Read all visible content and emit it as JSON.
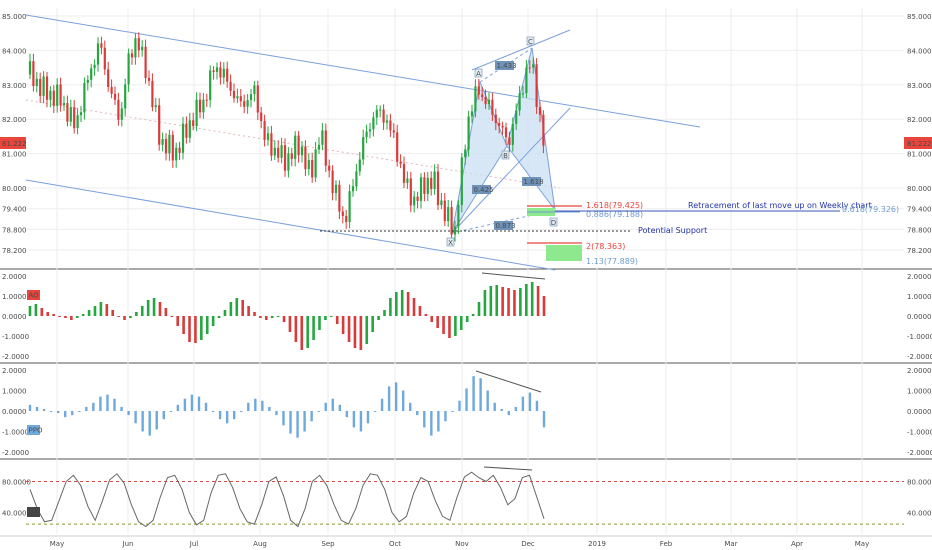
{
  "colors": {
    "up": "#26a641",
    "down": "#d93b3b",
    "channel": "#7aa1db",
    "pattern_fill": "#c9dff2",
    "badge": "#e8453c",
    "ppo_bar": "#6fa8dc",
    "sd_line": "#666666",
    "level_red": "#e8453c",
    "level_blue": "#6f9bd1",
    "zone_green": "#8ee88e",
    "grid": "#eeeeee",
    "divider": "#555555"
  },
  "chart_data": [
    {
      "type": "candlestick",
      "title": "",
      "ylim": [
        77.6,
        85.2
      ],
      "y_ticks": [
        "85.000",
        "84.000",
        "83.000",
        "82.000",
        "81.000",
        "80.000",
        "79.400",
        "78.800",
        "78.200"
      ],
      "last_price": "81.222",
      "x_labels": [
        "May",
        "Jun",
        "Jul",
        "Aug",
        "Sep",
        "Oct",
        "Nov",
        "Dec",
        "2019",
        "Feb",
        "Mar",
        "Apr",
        "May"
      ],
      "annotations": {
        "pattern_points": [
          "X",
          "A",
          "B",
          "C",
          "D"
        ],
        "ratios": [
          "1.433",
          "0.425",
          "1.618",
          "0.873"
        ],
        "levels": [
          "1.618(79.425)",
          "0.886(79.188)",
          "2(78.363)",
          "1.13(77.889)",
          "0.618(79.326)"
        ],
        "notes": [
          "Retracement of last move up on Weekly chart",
          "Potential Support"
        ]
      }
    },
    {
      "type": "bar",
      "name": "AO",
      "ylim": [
        -2,
        2
      ],
      "y_ticks": [
        "2.0000",
        "1.0000",
        "0.0000",
        "-1.0000",
        "-2.0000"
      ],
      "values": [
        0.5,
        0.6,
        0.4,
        0.2,
        0.1,
        0.0,
        -0.1,
        -0.2,
        -0.1,
        0.1,
        0.3,
        0.5,
        0.7,
        0.6,
        0.3,
        0.0,
        -0.2,
        -0.1,
        0.2,
        0.5,
        0.8,
        0.9,
        0.7,
        0.4,
        0.0,
        -0.5,
        -0.9,
        -1.3,
        -1.35,
        -1.2,
        -0.9,
        -0.5,
        -0.1,
        0.3,
        0.7,
        0.9,
        0.8,
        0.5,
        0.2,
        -0.1,
        -0.2,
        -0.1,
        0.0,
        -0.3,
        -0.8,
        -1.3,
        -1.7,
        -1.6,
        -1.2,
        -0.7,
        -0.2,
        0.0,
        -0.4,
        -0.9,
        -1.3,
        -1.6,
        -1.7,
        -1.4,
        -0.8,
        -0.2,
        0.3,
        0.9,
        1.2,
        1.3,
        1.2,
        0.9,
        0.5,
        0.1,
        -0.3,
        -0.6,
        -0.9,
        -1.1,
        -1.0,
        -0.7,
        -0.3,
        0.1,
        0.7,
        1.3,
        1.5,
        1.55,
        1.45,
        1.4,
        1.3,
        1.4,
        1.6,
        1.7,
        1.5,
        1.0
      ]
    },
    {
      "type": "bar",
      "name": "PPO",
      "ylim": [
        -2,
        2
      ],
      "y_ticks": [
        "2.0000",
        "1.0000",
        "0.0000",
        "-1.0000",
        "-2.0000"
      ],
      "values": [
        0.3,
        0.2,
        0.1,
        0.0,
        -0.1,
        -0.3,
        -0.2,
        0.0,
        0.2,
        0.4,
        0.7,
        0.8,
        0.6,
        0.2,
        -0.2,
        -0.6,
        -1.0,
        -1.2,
        -0.9,
        -0.4,
        0.0,
        0.3,
        0.6,
        0.8,
        0.7,
        0.4,
        0.0,
        -0.4,
        -0.6,
        -0.4,
        0.0,
        0.4,
        0.6,
        0.5,
        0.2,
        -0.2,
        -0.7,
        -1.1,
        -1.3,
        -1.0,
        -0.5,
        0.0,
        0.4,
        0.6,
        0.3,
        -0.3,
        -0.8,
        -1.0,
        -0.6,
        0.0,
        0.6,
        1.2,
        1.4,
        1.0,
        0.4,
        -0.2,
        -0.8,
        -1.2,
        -1.0,
        -0.5,
        0.0,
        0.5,
        1.1,
        1.7,
        1.6,
        1.0,
        0.4,
        0.1,
        -0.2,
        0.2,
        0.7,
        0.9,
        0.5,
        -0.8
      ]
    },
    {
      "type": "line",
      "name": "SD",
      "ylim": [
        20,
        100
      ],
      "y_ticks": [
        "80.0000",
        "40.0000"
      ],
      "levels": [
        80,
        25
      ],
      "values": [
        70,
        45,
        28,
        30,
        55,
        80,
        88,
        75,
        48,
        30,
        55,
        82,
        90,
        78,
        50,
        28,
        22,
        30,
        60,
        85,
        88,
        70,
        40,
        24,
        30,
        65,
        88,
        90,
        72,
        45,
        28,
        25,
        50,
        80,
        86,
        62,
        30,
        22,
        45,
        80,
        88,
        75,
        50,
        30,
        25,
        45,
        75,
        90,
        88,
        70,
        40,
        28,
        35,
        65,
        85,
        80,
        55,
        35,
        30,
        60,
        86,
        92,
        85,
        80,
        88,
        72,
        50,
        58,
        85,
        88,
        60,
        32
      ]
    }
  ]
}
